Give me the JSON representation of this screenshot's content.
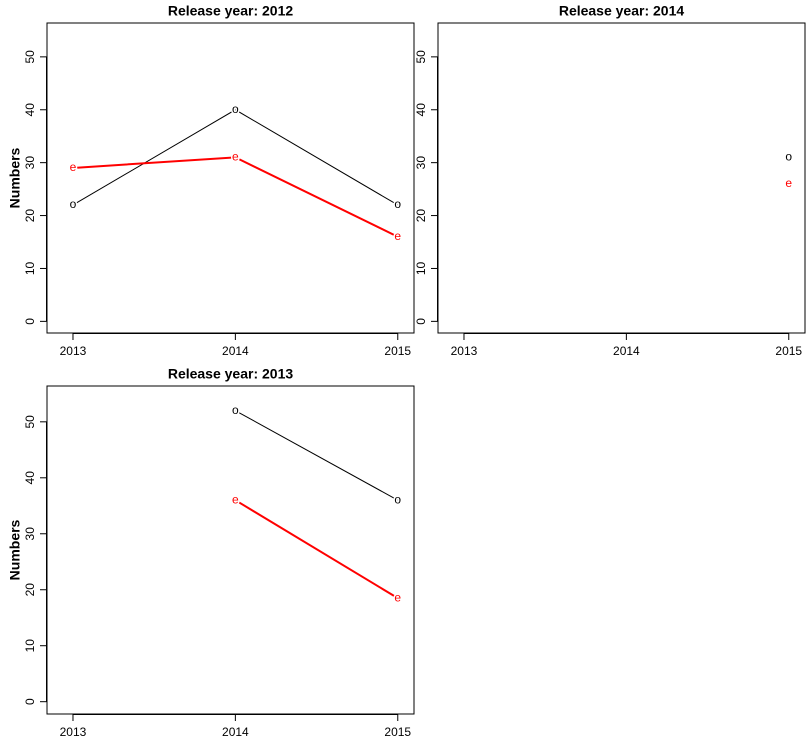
{
  "chart_data": [
    {
      "type": "line",
      "title": "Release year: 2012",
      "y_label": "Numbers",
      "x": [
        2013,
        2014,
        2015
      ],
      "xlim": [
        2012.84,
        2015.1
      ],
      "xticks": [
        2013,
        2014,
        2015
      ],
      "ylim": [
        -2.2,
        56.4
      ],
      "yticks": [
        0,
        10,
        20,
        30,
        40,
        50
      ],
      "series": [
        {
          "name": "o",
          "color": "#000000",
          "values": [
            22,
            40,
            22
          ]
        },
        {
          "name": "e",
          "color": "#ff0000",
          "values": [
            29,
            31,
            16
          ]
        }
      ]
    },
    {
      "type": "line",
      "title": "Release year: 2014",
      "x": [
        2013,
        2014,
        2015
      ],
      "xlim": [
        2012.84,
        2015.1
      ],
      "xticks": [
        2013,
        2014,
        2015
      ],
      "ylim": [
        -2.2,
        56.4
      ],
      "yticks": [
        0,
        10,
        20,
        30,
        40,
        50
      ],
      "series": [
        {
          "name": "o",
          "color": "#000000",
          "values": [
            null,
            null,
            31
          ]
        },
        {
          "name": "e",
          "color": "#ff0000",
          "values": [
            null,
            null,
            26
          ]
        }
      ]
    },
    {
      "type": "line",
      "title": "Release year: 2013",
      "y_label": "Numbers",
      "x": [
        2013,
        2014,
        2015
      ],
      "xlim": [
        2012.84,
        2015.1
      ],
      "xticks": [
        2013,
        2014,
        2015
      ],
      "ylim": [
        -2.2,
        56.4
      ],
      "yticks": [
        0,
        10,
        20,
        30,
        40,
        50
      ],
      "series": [
        {
          "name": "o",
          "color": "#000000",
          "values": [
            null,
            52,
            36
          ]
        },
        {
          "name": "e",
          "color": "#ff0000",
          "values": [
            null,
            36,
            18.5
          ]
        }
      ]
    }
  ]
}
